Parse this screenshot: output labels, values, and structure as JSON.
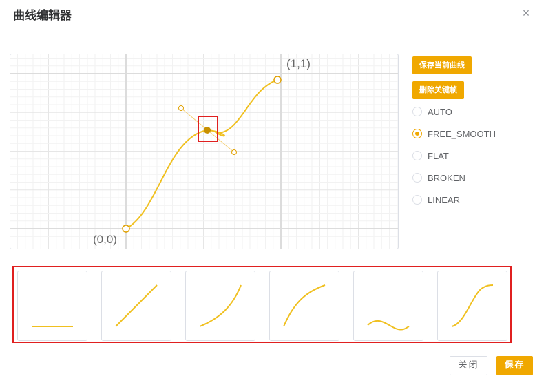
{
  "dialog": {
    "title": "曲线编辑器",
    "close_glyph": "×"
  },
  "editor": {
    "origin_label": "(0,0)",
    "end_label": "(1,1)"
  },
  "actions": {
    "save_curve": "保存当前曲线",
    "delete_keyframe": "删除关键帧"
  },
  "tangent_modes": [
    {
      "label": "AUTO",
      "checked": false
    },
    {
      "label": "FREE_SMOOTH",
      "checked": true
    },
    {
      "label": "FLAT",
      "checked": false
    },
    {
      "label": "BROKEN",
      "checked": false
    },
    {
      "label": "LINEAR",
      "checked": false
    }
  ],
  "presets": [
    "flat-line",
    "linear",
    "ease-in",
    "ease-out",
    "wave",
    "ease-in-out"
  ],
  "footer": {
    "close": "关闭",
    "save": "保存"
  },
  "colors": {
    "accent": "#f0a800",
    "curve": "#f0c020",
    "highlight": "#e02020"
  }
}
